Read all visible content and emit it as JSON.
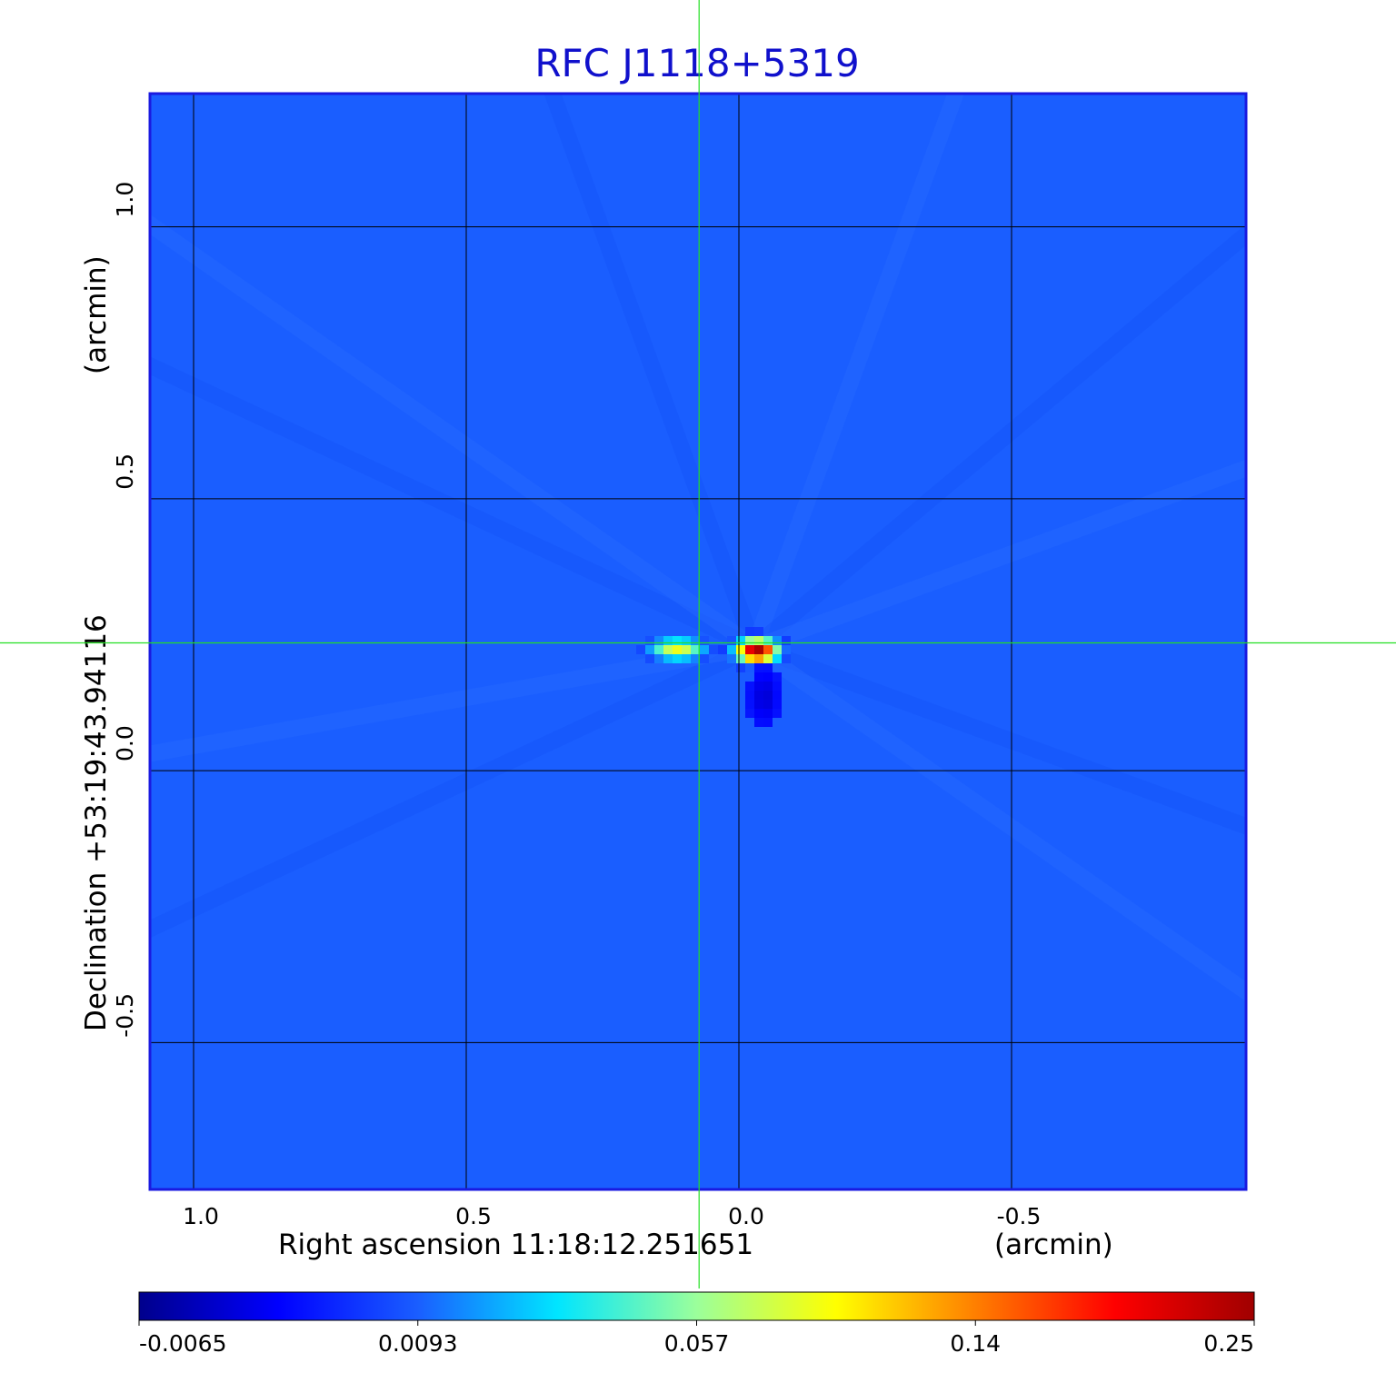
{
  "chart_data": {
    "type": "heatmap",
    "title": "RFC J1118+5319",
    "xlabel": "Right ascension  11:18:12.251651",
    "xunit": "(arcmin)",
    "ylabel": "Declination  +53:19:43.94116",
    "yunit": "(arcmin)",
    "x_ticks": [
      {
        "value": 1.0,
        "label": "1.0"
      },
      {
        "value": 0.5,
        "label": "0.5"
      },
      {
        "value": 0.0,
        "label": "0.0"
      },
      {
        "value": -0.5,
        "label": "-0.5"
      }
    ],
    "y_ticks": [
      {
        "value": 1.0,
        "label": "1.0"
      },
      {
        "value": 0.5,
        "label": "0.5"
      },
      {
        "value": 0.0,
        "label": "0.0"
      },
      {
        "value": -0.5,
        "label": "-0.5"
      }
    ],
    "xlim": [
      1.08,
      -0.93
    ],
    "ylim": [
      -0.77,
      1.245
    ],
    "grid": true,
    "crosshair": {
      "x": 0.073,
      "y": 0.235
    },
    "sources": [
      {
        "x": 0.117,
        "y": 0.23,
        "peak": 0.085,
        "sx": 0.028,
        "sy": 0.011
      },
      {
        "x": -0.028,
        "y": 0.227,
        "peak": 0.25,
        "sx": 0.021,
        "sy": 0.012
      },
      {
        "x": -0.045,
        "y": 0.15,
        "peak": -0.0065,
        "sx": 0.02,
        "sy": 0.04
      }
    ],
    "colorbar": {
      "ticks": [
        "-0.0065",
        "0.0093",
        "0.057",
        "0.14",
        "0.25"
      ],
      "colors": [
        "#00008c",
        "#0000ff",
        "#1a5eff",
        "#00e5ff",
        "#9bff9b",
        "#ffff00",
        "#ff7f00",
        "#ff0000",
        "#a00000"
      ]
    },
    "colors": {
      "background_map": "#1a5eff",
      "title": "#1010cc",
      "frame": "#1a1ae0",
      "grid": "#000000",
      "crosshair": "#22e022"
    }
  }
}
